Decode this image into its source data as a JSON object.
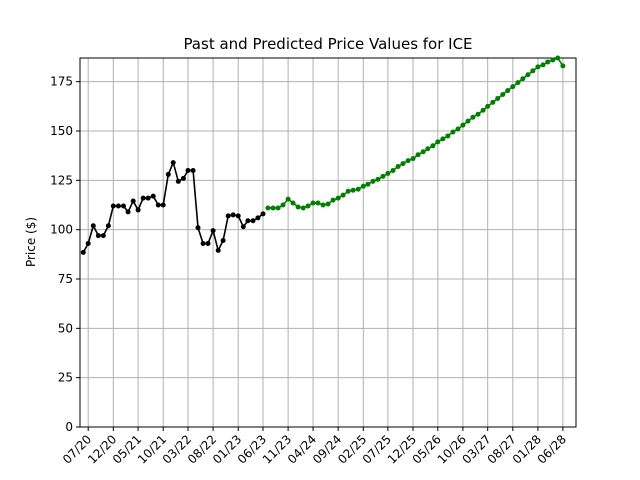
{
  "chart_data": {
    "type": "line",
    "title": "Past and Predicted Price Values for ICE",
    "xlabel": "",
    "ylabel": "Price ($)",
    "ylim": [
      0,
      187
    ],
    "yticks": [
      0,
      25,
      50,
      75,
      100,
      125,
      150,
      175
    ],
    "xlim": [
      "2020-05-12",
      "2028-08-20"
    ],
    "xticks": [
      {
        "label": "07/20",
        "date": "2020-07-01"
      },
      {
        "label": "12/20",
        "date": "2020-12-01"
      },
      {
        "label": "05/21",
        "date": "2021-05-01"
      },
      {
        "label": "10/21",
        "date": "2021-10-01"
      },
      {
        "label": "03/22",
        "date": "2022-03-01"
      },
      {
        "label": "08/22",
        "date": "2022-08-01"
      },
      {
        "label": "01/23",
        "date": "2023-01-01"
      },
      {
        "label": "06/23",
        "date": "2023-06-01"
      },
      {
        "label": "11/23",
        "date": "2023-11-01"
      },
      {
        "label": "04/24",
        "date": "2024-04-01"
      },
      {
        "label": "09/24",
        "date": "2024-09-01"
      },
      {
        "label": "02/25",
        "date": "2025-02-01"
      },
      {
        "label": "07/25",
        "date": "2025-07-01"
      },
      {
        "label": "12/25",
        "date": "2025-12-01"
      },
      {
        "label": "05/26",
        "date": "2026-05-01"
      },
      {
        "label": "10/26",
        "date": "2026-10-01"
      },
      {
        "label": "03/27",
        "date": "2027-03-01"
      },
      {
        "label": "08/27",
        "date": "2027-08-01"
      },
      {
        "label": "01/28",
        "date": "2028-01-01"
      },
      {
        "label": "06/28",
        "date": "2028-06-01"
      }
    ],
    "grid": true,
    "series": [
      {
        "color": "#000000",
        "x": [
          "2020-06-01",
          "2020-07-01",
          "2020-08-01",
          "2020-09-01",
          "2020-10-01",
          "2020-11-01",
          "2020-12-01",
          "2021-01-01",
          "2021-02-01",
          "2021-03-01",
          "2021-04-01",
          "2021-05-01",
          "2021-06-01",
          "2021-07-01",
          "2021-08-01",
          "2021-09-01",
          "2021-10-01",
          "2021-11-01",
          "2021-12-01",
          "2022-01-01",
          "2022-02-01",
          "2022-03-01",
          "2022-04-01",
          "2022-05-01",
          "2022-06-01",
          "2022-07-01",
          "2022-08-01",
          "2022-09-01",
          "2022-10-01",
          "2022-11-01",
          "2022-12-01",
          "2023-01-01",
          "2023-02-01",
          "2023-03-01",
          "2023-04-01",
          "2023-05-01",
          "2023-06-01"
        ],
        "y": [
          88.5,
          93,
          102,
          97,
          97,
          102,
          112,
          112,
          112,
          109,
          114.5,
          110,
          116,
          116,
          117,
          112.5,
          112.5,
          128,
          134,
          124.5,
          126,
          130,
          130,
          101,
          93,
          93,
          99.5,
          89.5,
          94.5,
          107,
          107.5,
          107,
          101.5,
          104.5,
          104.5,
          106,
          108
        ]
      },
      {
        "color": "#008000",
        "x": [
          "2023-07-01",
          "2023-08-01",
          "2023-09-01",
          "2023-10-01",
          "2023-11-01",
          "2023-12-01",
          "2024-01-01",
          "2024-02-01",
          "2024-03-01",
          "2024-04-01",
          "2024-05-01",
          "2024-06-01",
          "2024-07-01",
          "2024-08-01",
          "2024-09-01",
          "2024-10-01",
          "2024-11-01",
          "2024-12-01",
          "2025-01-01",
          "2025-02-01",
          "2025-03-01",
          "2025-04-01",
          "2025-05-01",
          "2025-06-01",
          "2025-07-01",
          "2025-08-01",
          "2025-09-01",
          "2025-10-01",
          "2025-11-01",
          "2025-12-01",
          "2026-01-01",
          "2026-02-01",
          "2026-03-01",
          "2026-04-01",
          "2026-05-01",
          "2026-06-01",
          "2026-07-01",
          "2026-08-01",
          "2026-09-01",
          "2026-10-01",
          "2026-11-01",
          "2026-12-01",
          "2027-01-01",
          "2027-02-01",
          "2027-03-01",
          "2027-04-01",
          "2027-05-01",
          "2027-06-01",
          "2027-07-01",
          "2027-08-01",
          "2027-09-01",
          "2027-10-01",
          "2027-11-01",
          "2027-12-01",
          "2028-01-01",
          "2028-02-01",
          "2028-03-01",
          "2028-04-01",
          "2028-05-01",
          "2028-06-01"
        ],
        "y": [
          111,
          111,
          111,
          112.5,
          115.5,
          113.5,
          111.5,
          111,
          112,
          113.5,
          113.5,
          112.5,
          113,
          115,
          116,
          117.5,
          119.5,
          120,
          120.5,
          122,
          123,
          124.5,
          125.5,
          127,
          128.5,
          130,
          132,
          133.5,
          135,
          136,
          138,
          139.5,
          141,
          142.5,
          144.5,
          146,
          147.5,
          149.5,
          151,
          153,
          155,
          157,
          158.5,
          160.5,
          162.5,
          164.5,
          166.5,
          168.5,
          170.5,
          172.5,
          174.5,
          176.5,
          178.5,
          180.5,
          182.5,
          183.5,
          185,
          186,
          187,
          183
        ]
      }
    ]
  }
}
